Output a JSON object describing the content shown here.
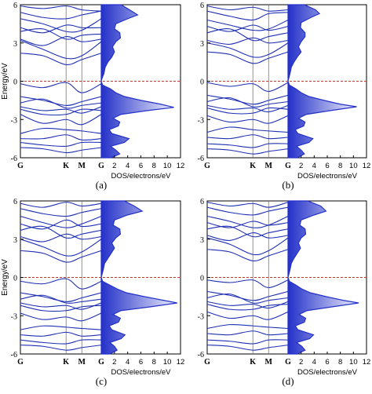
{
  "colors": {
    "band": "#1f2fb3",
    "axis": "#000000",
    "fermi": "#c0392b",
    "dos_fill": "#2431c9",
    "vline": "#777777"
  },
  "panels_meta": {
    "xlabel": "DOS/electrons/eV",
    "ylabel": "Energy/eV"
  },
  "chart_data": [
    {
      "type": "line",
      "panel_label": "(a)",
      "band_ticks": [
        "G",
        "K",
        "M",
        "G"
      ],
      "band_tick_positions": [
        0,
        0.565,
        0.76,
        1
      ],
      "y_ticks": [
        "6",
        "3",
        "0",
        "-3",
        "-6"
      ],
      "y_tick_values": [
        6,
        3,
        0,
        -3,
        -6
      ],
      "ylim": [
        -6,
        6
      ],
      "xlabel": "DOS/electrons/eV",
      "ylabel": "Energy/eV",
      "fermi_level": 0,
      "bands": [
        [
          5.9,
          5.7,
          5.9,
          5.6,
          5.5
        ],
        [
          5.4,
          5.0,
          4.9,
          5.2,
          5.5
        ],
        [
          4.9,
          4.5,
          3.9,
          4.0,
          4.9
        ],
        [
          4.2,
          3.8,
          4.4,
          4.2,
          4.2
        ],
        [
          3.9,
          4.1,
          3.3,
          3.6,
          3.7
        ],
        [
          3.3,
          2.8,
          3.5,
          3.1,
          3.3
        ],
        [
          3.2,
          2.5,
          1.8,
          2.0,
          3.1
        ],
        [
          2.2,
          2.0,
          1.3,
          1.7,
          2.2
        ],
        [
          -0.2,
          -0.5,
          -0.1,
          -0.9,
          -0.2
        ],
        [
          -1.2,
          -1.5,
          -1.9,
          -1.6,
          -1.2
        ],
        [
          -1.7,
          -1.4,
          -2.1,
          -1.9,
          -1.7
        ],
        [
          -2.0,
          -2.3,
          -2.2,
          -2.5,
          -2.0
        ],
        [
          -2.2,
          -2.6,
          -2.6,
          -2.2,
          -2.3
        ],
        [
          -2.6,
          -3.3,
          -3.0,
          -3.4,
          -2.6
        ],
        [
          -4.1,
          -3.7,
          -3.8,
          -3.9,
          -4.1
        ],
        [
          -4.5,
          -4.5,
          -4.2,
          -4.6,
          -4.5
        ],
        [
          -4.8,
          -5.0,
          -5.1,
          -4.8,
          -4.8
        ],
        [
          -5.2,
          -5.3,
          -5.6,
          -5.4,
          -5.2
        ]
      ],
      "band_x": [
        0,
        0.28,
        0.565,
        0.76,
        1
      ],
      "dos_x_ticks": [
        "2",
        "4",
        "6",
        "8",
        "10",
        "12"
      ],
      "dos_x_tick_values": [
        2,
        4,
        6,
        8,
        10,
        12
      ],
      "dos_xlim": [
        0,
        12
      ],
      "dos": [
        [
          6,
          3.0
        ],
        [
          5.5,
          4.6
        ],
        [
          5.2,
          5.5
        ],
        [
          4.9,
          4.0
        ],
        [
          4.5,
          2.2
        ],
        [
          4.1,
          2.0
        ],
        [
          3.8,
          2.8
        ],
        [
          3.4,
          2.9
        ],
        [
          3.1,
          2.2
        ],
        [
          2.7,
          1.7
        ],
        [
          2.3,
          2.0
        ],
        [
          1.9,
          1.6
        ],
        [
          1.5,
          1.0
        ],
        [
          1.1,
          0.6
        ],
        [
          0.6,
          0.4
        ],
        [
          0.2,
          0.1
        ],
        [
          0,
          0
        ],
        [
          -0.3,
          0.2
        ],
        [
          -0.6,
          1.4
        ],
        [
          -0.9,
          2.2
        ],
        [
          -1.2,
          3.5
        ],
        [
          -1.5,
          6.0
        ],
        [
          -1.8,
          9.0
        ],
        [
          -2.05,
          11.0
        ],
        [
          -2.3,
          7.0
        ],
        [
          -2.6,
          3.0
        ],
        [
          -2.9,
          1.8
        ],
        [
          -3.2,
          2.8
        ],
        [
          -3.5,
          2.6
        ],
        [
          -3.8,
          1.2
        ],
        [
          -4.1,
          1.6
        ],
        [
          -4.5,
          4.2
        ],
        [
          -4.8,
          3.5
        ],
        [
          -5.1,
          1.4
        ],
        [
          -5.4,
          2.2
        ],
        [
          -5.7,
          2.8
        ],
        [
          -6,
          1.5
        ]
      ]
    },
    {
      "type": "line",
      "panel_label": "(b)",
      "band_ticks": [
        "G",
        "K",
        "M",
        "G"
      ],
      "band_tick_positions": [
        0,
        0.565,
        0.76,
        1
      ],
      "y_ticks": [
        "6",
        "3",
        "0",
        "-3",
        "-6"
      ],
      "y_tick_values": [
        6,
        3,
        0,
        -3,
        -6
      ],
      "ylim": [
        -6,
        6
      ],
      "xlabel": "DOS/electrons/eV",
      "ylabel": "",
      "fermi_level": 0,
      "bands": [
        [
          5.9,
          5.6,
          5.8,
          5.5,
          5.6
        ],
        [
          5.5,
          5.1,
          4.8,
          5.3,
          5.4
        ],
        [
          4.8,
          4.4,
          4.0,
          4.1,
          4.8
        ],
        [
          4.3,
          3.9,
          4.4,
          4.0,
          4.3
        ],
        [
          3.8,
          4.1,
          3.2,
          3.5,
          3.8
        ],
        [
          3.2,
          2.9,
          3.4,
          3.0,
          3.2
        ],
        [
          3.0,
          2.6,
          1.9,
          2.1,
          3.0
        ],
        [
          2.3,
          2.1,
          1.4,
          1.8,
          2.3
        ],
        [
          -0.1,
          -0.4,
          -0.2,
          -0.8,
          -0.1
        ],
        [
          -1.1,
          -1.4,
          -1.8,
          -1.5,
          -1.1
        ],
        [
          -1.6,
          -1.3,
          -2.0,
          -1.8,
          -1.6
        ],
        [
          -1.9,
          -2.2,
          -2.1,
          -2.4,
          -1.9
        ],
        [
          -2.1,
          -2.5,
          -2.5,
          -2.1,
          -2.2
        ],
        [
          -2.7,
          -3.2,
          -3.0,
          -3.3,
          -2.7
        ],
        [
          -4.0,
          -3.6,
          -3.8,
          -3.9,
          -4.0
        ],
        [
          -4.4,
          -4.5,
          -4.2,
          -4.5,
          -4.4
        ],
        [
          -4.9,
          -5.0,
          -5.2,
          -4.9,
          -4.9
        ],
        [
          -5.3,
          -5.4,
          -5.7,
          -5.5,
          -5.3
        ]
      ],
      "band_x": [
        0,
        0.28,
        0.565,
        0.76,
        1
      ],
      "dos_x_ticks": [
        "2",
        "4",
        "6",
        "8",
        "10",
        "12"
      ],
      "dos_x_tick_values": [
        2,
        4,
        6,
        8,
        10,
        12
      ],
      "dos_xlim": [
        0,
        12
      ],
      "dos": [
        [
          6,
          2.5
        ],
        [
          5.6,
          4.2
        ],
        [
          5.3,
          4.8
        ],
        [
          5.0,
          3.5
        ],
        [
          4.6,
          2.0
        ],
        [
          4.2,
          1.9
        ],
        [
          3.8,
          2.6
        ],
        [
          3.5,
          2.6
        ],
        [
          3.1,
          2.0
        ],
        [
          2.7,
          1.6
        ],
        [
          2.3,
          2.0
        ],
        [
          1.9,
          1.4
        ],
        [
          1.5,
          0.9
        ],
        [
          1.1,
          0.5
        ],
        [
          0.6,
          0.3
        ],
        [
          0.2,
          0.1
        ],
        [
          0,
          0
        ],
        [
          -0.3,
          0.2
        ],
        [
          -0.6,
          1.2
        ],
        [
          -0.9,
          2.0
        ],
        [
          -1.2,
          3.2
        ],
        [
          -1.5,
          5.5
        ],
        [
          -1.8,
          8.0
        ],
        [
          -2.0,
          10.5
        ],
        [
          -2.3,
          6.5
        ],
        [
          -2.6,
          2.8
        ],
        [
          -2.9,
          1.6
        ],
        [
          -3.2,
          2.6
        ],
        [
          -3.5,
          2.4
        ],
        [
          -3.8,
          1.1
        ],
        [
          -4.1,
          1.5
        ],
        [
          -4.5,
          3.8
        ],
        [
          -4.8,
          3.2
        ],
        [
          -5.1,
          1.3
        ],
        [
          -5.4,
          2.0
        ],
        [
          -5.7,
          2.5
        ],
        [
          -6,
          1.4
        ]
      ]
    },
    {
      "type": "line",
      "panel_label": "(c)",
      "band_ticks": [
        "G",
        "K",
        "M",
        "G"
      ],
      "band_tick_positions": [
        0,
        0.565,
        0.76,
        1
      ],
      "y_ticks": [
        "6",
        "3",
        "0",
        "-3",
        "-6"
      ],
      "y_tick_values": [
        6,
        3,
        0,
        -3,
        -6
      ],
      "ylim": [
        -6,
        6
      ],
      "xlabel": "DOS/electrons/eV",
      "ylabel": "Energy/eV",
      "fermi_level": 0,
      "bands": [
        [
          5.8,
          5.5,
          5.9,
          5.6,
          5.8
        ],
        [
          5.4,
          5.0,
          4.8,
          5.1,
          5.4
        ],
        [
          4.8,
          4.3,
          3.9,
          4.2,
          4.8
        ],
        [
          4.2,
          3.8,
          4.5,
          4.0,
          4.2
        ],
        [
          3.7,
          4.0,
          3.1,
          3.4,
          3.7
        ],
        [
          3.2,
          2.8,
          3.4,
          3.0,
          3.2
        ],
        [
          3.0,
          2.4,
          1.7,
          2.0,
          3.0
        ],
        [
          2.1,
          1.9,
          1.2,
          1.6,
          2.1
        ],
        [
          -0.3,
          -0.5,
          -0.1,
          -0.9,
          -0.3
        ],
        [
          -1.2,
          -1.5,
          -1.9,
          -1.6,
          -1.2
        ],
        [
          -1.7,
          -1.4,
          -2.0,
          -1.9,
          -1.7
        ],
        [
          -2.0,
          -2.3,
          -2.2,
          -2.5,
          -2.0
        ],
        [
          -2.2,
          -2.6,
          -2.6,
          -2.3,
          -2.2
        ],
        [
          -2.8,
          -3.3,
          -3.1,
          -3.4,
          -2.8
        ],
        [
          -4.1,
          -3.8,
          -3.9,
          -4.0,
          -4.1
        ],
        [
          -4.5,
          -4.6,
          -4.3,
          -4.6,
          -4.5
        ],
        [
          -4.9,
          -5.1,
          -5.2,
          -4.9,
          -4.9
        ],
        [
          -5.3,
          -5.4,
          -5.7,
          -5.5,
          -5.3
        ]
      ],
      "band_x": [
        0,
        0.28,
        0.565,
        0.76,
        1
      ],
      "dos_x_ticks": [
        "2",
        "4",
        "6",
        "8",
        "10",
        "12"
      ],
      "dos_x_tick_values": [
        2,
        4,
        6,
        8,
        10,
        12
      ],
      "dos_xlim": [
        0,
        12
      ],
      "dos": [
        [
          6,
          3.5
        ],
        [
          5.6,
          5.0
        ],
        [
          5.2,
          6.2
        ],
        [
          4.9,
          4.0
        ],
        [
          4.5,
          2.0
        ],
        [
          4.1,
          1.8
        ],
        [
          3.8,
          2.8
        ],
        [
          3.4,
          2.9
        ],
        [
          3.1,
          2.2
        ],
        [
          2.7,
          1.6
        ],
        [
          2.3,
          2.0
        ],
        [
          1.9,
          1.5
        ],
        [
          1.5,
          1.0
        ],
        [
          1.1,
          0.5
        ],
        [
          0.6,
          0.3
        ],
        [
          0.2,
          0.1
        ],
        [
          0,
          0
        ],
        [
          -0.3,
          0.2
        ],
        [
          -0.6,
          1.3
        ],
        [
          -0.9,
          2.4
        ],
        [
          -1.2,
          3.8
        ],
        [
          -1.5,
          6.5
        ],
        [
          -1.8,
          9.5
        ],
        [
          -2.0,
          11.5
        ],
        [
          -2.3,
          7.5
        ],
        [
          -2.6,
          3.0
        ],
        [
          -2.9,
          1.8
        ],
        [
          -3.2,
          2.9
        ],
        [
          -3.5,
          2.6
        ],
        [
          -3.8,
          1.2
        ],
        [
          -4.1,
          1.6
        ],
        [
          -4.5,
          3.6
        ],
        [
          -4.8,
          3.0
        ],
        [
          -5.1,
          1.3
        ],
        [
          -5.4,
          2.0
        ],
        [
          -5.7,
          2.4
        ],
        [
          -6,
          1.3
        ]
      ]
    },
    {
      "type": "line",
      "panel_label": "(d)",
      "band_ticks": [
        "G",
        "K",
        "M",
        "G"
      ],
      "band_tick_positions": [
        0,
        0.565,
        0.76,
        1
      ],
      "y_ticks": [
        "6",
        "3",
        "0",
        "-3",
        "-6"
      ],
      "y_tick_values": [
        6,
        3,
        0,
        -3,
        -6
      ],
      "ylim": [
        -6,
        6
      ],
      "xlabel": "DOS/electrons/eV",
      "ylabel": "",
      "fermi_level": 0,
      "bands": [
        [
          5.9,
          5.6,
          5.8,
          5.5,
          5.9
        ],
        [
          5.5,
          5.1,
          4.9,
          5.2,
          5.5
        ],
        [
          4.8,
          4.4,
          3.9,
          4.1,
          4.8
        ],
        [
          4.3,
          3.9,
          4.4,
          4.1,
          4.3
        ],
        [
          3.8,
          4.0,
          3.2,
          3.5,
          3.8
        ],
        [
          3.3,
          2.9,
          3.5,
          3.1,
          3.3
        ],
        [
          3.1,
          2.6,
          1.8,
          2.1,
          3.1
        ],
        [
          2.2,
          2.0,
          1.3,
          1.7,
          2.2
        ],
        [
          -0.2,
          -0.4,
          -0.2,
          -0.8,
          -0.2
        ],
        [
          -1.1,
          -1.4,
          -1.8,
          -1.5,
          -1.1
        ],
        [
          -1.6,
          -1.3,
          -2.0,
          -1.8,
          -1.6
        ],
        [
          -1.9,
          -2.2,
          -2.1,
          -2.4,
          -1.9
        ],
        [
          -2.1,
          -2.5,
          -2.5,
          -2.2,
          -2.1
        ],
        [
          -2.7,
          -3.2,
          -3.0,
          -3.3,
          -2.7
        ],
        [
          -4.0,
          -3.7,
          -3.8,
          -3.9,
          -4.0
        ],
        [
          -4.4,
          -4.5,
          -4.2,
          -4.5,
          -4.4
        ],
        [
          -4.9,
          -5.0,
          -5.2,
          -4.9,
          -4.9
        ],
        [
          -5.3,
          -5.4,
          -5.7,
          -5.5,
          -5.3
        ]
      ],
      "band_x": [
        0,
        0.28,
        0.565,
        0.76,
        1
      ],
      "dos_x_ticks": [
        "2",
        "4",
        "6",
        "8",
        "10",
        "12"
      ],
      "dos_x_tick_values": [
        2,
        4,
        6,
        8,
        10,
        12
      ],
      "dos_xlim": [
        0,
        12
      ],
      "dos": [
        [
          6,
          3.0
        ],
        [
          5.6,
          5.0
        ],
        [
          5.2,
          5.8
        ],
        [
          4.9,
          4.0
        ],
        [
          4.5,
          2.0
        ],
        [
          4.1,
          1.8
        ],
        [
          3.8,
          2.6
        ],
        [
          3.4,
          2.7
        ],
        [
          3.1,
          2.0
        ],
        [
          2.7,
          1.6
        ],
        [
          2.3,
          1.9
        ],
        [
          1.9,
          1.4
        ],
        [
          1.5,
          0.9
        ],
        [
          1.1,
          0.5
        ],
        [
          0.6,
          0.3
        ],
        [
          0.2,
          0.1
        ],
        [
          0,
          0
        ],
        [
          -0.3,
          0.2
        ],
        [
          -0.6,
          1.2
        ],
        [
          -0.9,
          2.1
        ],
        [
          -1.2,
          3.4
        ],
        [
          -1.5,
          5.8
        ],
        [
          -1.8,
          8.5
        ],
        [
          -2.0,
          10.8
        ],
        [
          -2.3,
          6.8
        ],
        [
          -2.6,
          2.9
        ],
        [
          -2.9,
          1.7
        ],
        [
          -3.2,
          2.7
        ],
        [
          -3.5,
          2.5
        ],
        [
          -3.8,
          1.1
        ],
        [
          -4.1,
          1.5
        ],
        [
          -4.5,
          3.9
        ],
        [
          -4.8,
          3.3
        ],
        [
          -5.1,
          1.3
        ],
        [
          -5.4,
          2.1
        ],
        [
          -5.7,
          2.6
        ],
        [
          -6,
          1.4
        ]
      ]
    }
  ]
}
